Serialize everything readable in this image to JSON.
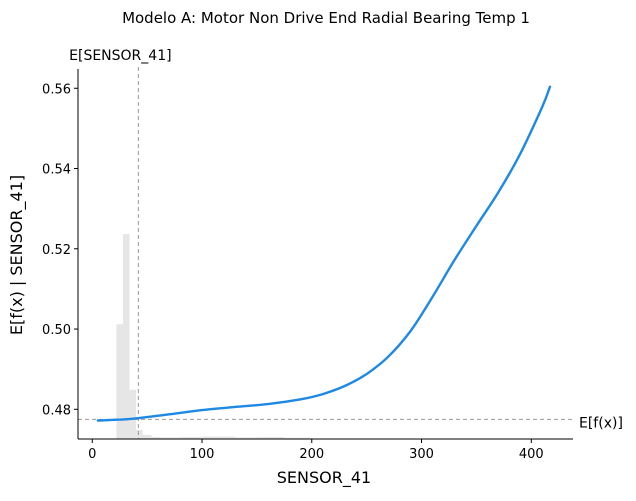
{
  "chart_data": {
    "type": "line",
    "title": "Modelo A: Motor Non Drive End Radial Bearing Temp 1",
    "xlabel": "SENSOR_41",
    "ylabel": "E[f(x) | SENSOR_41]",
    "xlim": [
      -13,
      438
    ],
    "ylim": [
      0.4726,
      0.5648
    ],
    "xticks": [
      0,
      100,
      200,
      300,
      400
    ],
    "yticks": [
      0.48,
      0.5,
      0.52,
      0.54,
      0.56
    ],
    "xtick_labels": [
      "0",
      "100",
      "200",
      "300",
      "400"
    ],
    "ytick_labels": [
      "0.48",
      "0.50",
      "0.52",
      "0.54",
      "0.56"
    ],
    "series": [
      {
        "color": "#1e88e5",
        "x": [
          5,
          30,
          45,
          60,
          80,
          100,
          130,
          160,
          190,
          210,
          230,
          250,
          270,
          290,
          310,
          330,
          350,
          370,
          390,
          410,
          417
        ],
        "y": [
          0.4772,
          0.4775,
          0.4779,
          0.4784,
          0.4791,
          0.4798,
          0.4806,
          0.4813,
          0.4825,
          0.4838,
          0.4858,
          0.4888,
          0.4932,
          0.4995,
          0.508,
          0.5172,
          0.5257,
          0.5341,
          0.5437,
          0.5554,
          0.5604
        ]
      }
    ],
    "histogram": {
      "color": "#e6e6e6",
      "bin_edges": [
        22,
        28,
        34,
        40,
        46,
        54,
        62,
        80,
        100,
        130,
        150,
        175,
        200
      ],
      "counts": [
        0.56,
        1.0,
        0.24,
        0.045,
        0.02,
        0.01,
        0.008,
        0.01,
        0.012,
        0.008,
        0.01,
        0.006
      ]
    },
    "expected_value": {
      "label": "E[f(x)]",
      "value": 0.4775
    },
    "feature_expected_value": {
      "label": "E[SENSOR_41]",
      "value": 42
    },
    "grid": false,
    "legend": "none"
  }
}
